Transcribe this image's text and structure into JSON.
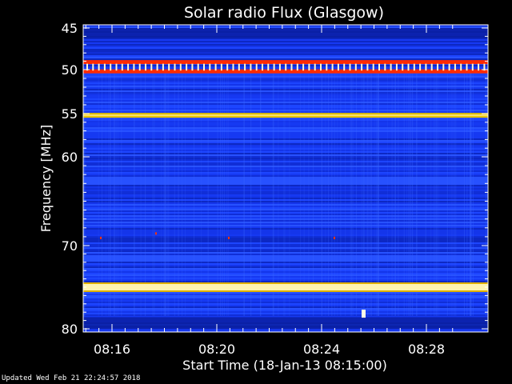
{
  "chart_data": {
    "type": "heatmap",
    "title": "Solar radio Flux (Glasgow)",
    "xlabel": "Start Time (18-Jan-13 08:15:00)",
    "ylabel_main": "Frequency",
    "ylabel_unit": "MHz",
    "x_ticks": [
      {
        "minutes": 1,
        "label": "08:16"
      },
      {
        "minutes": 5,
        "label": "08:20"
      },
      {
        "minutes": 9,
        "label": "08:24"
      },
      {
        "minutes": 13,
        "label": "08:28"
      }
    ],
    "y_ticks": [
      {
        "value": 45,
        "label": "45"
      },
      {
        "value": 50,
        "label": "50"
      },
      {
        "value": 55,
        "label": "55"
      },
      {
        "value": 60,
        "label": "60"
      },
      {
        "value": 70,
        "label": "70"
      },
      {
        "value": 80,
        "label": "80"
      }
    ],
    "ylim": [
      45,
      80
    ],
    "bands": [
      {
        "freq": 49.1,
        "kind": "interference-red",
        "color": "#ff2a00"
      },
      {
        "freq": 50.2,
        "kind": "interference-red",
        "color": "#ff2a00"
      },
      {
        "freq": 55.2,
        "kind": "interference-yellow",
        "color": "#e6c200"
      },
      {
        "freq": 75.0,
        "kind": "interference-bright",
        "color": "#fff4b0"
      }
    ],
    "colors": {
      "background": "#000000",
      "axis": "#ffffff",
      "low": "#0a1e9e",
      "mid": "#1a3cff",
      "high": "#ff2a00"
    }
  },
  "footer": {
    "updated": "Updated Wed Feb 21 22:24:57 2018"
  }
}
